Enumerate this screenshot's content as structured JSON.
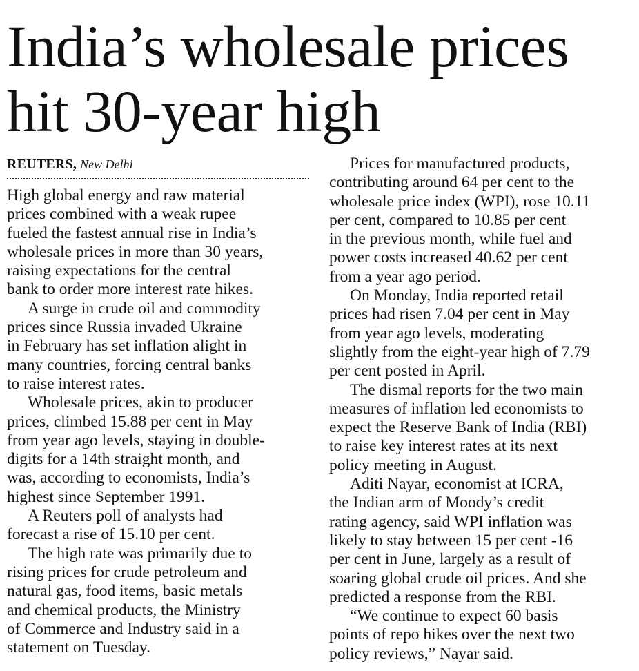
{
  "headline": {
    "line1": "India’s wholesale prices",
    "line2": "hit 30-year high"
  },
  "byline": {
    "agency": "REUTERS,",
    "place": "New Delhi"
  },
  "left_column": {
    "paragraphs": [
      {
        "lines": [
          "High global energy and raw material",
          "prices combined with a weak rupee",
          "fueled the fastest annual rise in India’s",
          "wholesale prices in more than 30 years,",
          "raising expectations for the central",
          "bank to order more interest rate hikes."
        ]
      },
      {
        "lines": [
          "A surge in crude oil and commodity",
          "prices since Russia invaded Ukraine",
          "in February has set inflation alight in",
          "many countries, forcing central banks",
          "to raise interest rates."
        ]
      },
      {
        "lines": [
          "Wholesale prices, akin to producer",
          "prices, climbed 15.88 per cent in May",
          "from year ago levels, staying in double-",
          "digits for a 14th straight month, and",
          "was, according to economists, India’s",
          "highest since September 1991."
        ]
      },
      {
        "lines": [
          "A Reuters poll of analysts had",
          "forecast a rise of 15.10 per cent."
        ]
      },
      {
        "lines": [
          "The high rate was primarily due to",
          "rising prices for crude petroleum and",
          "natural gas, food items, basic metals",
          "and chemical products, the Ministry",
          "of Commerce and Industry said in a",
          "statement on Tuesday."
        ]
      }
    ]
  },
  "right_column": {
    "paragraphs": [
      {
        "lines": [
          "Prices for manufactured products,",
          "contributing around 64 per cent to the",
          "wholesale price index (WPI), rose 10.11",
          "per cent, compared to 10.85 per cent",
          "in the previous month, while fuel and",
          "power costs increased 40.62 per cent",
          "from a year ago period."
        ]
      },
      {
        "lines": [
          "On Monday, India reported retail",
          "prices had risen 7.04 per cent in May",
          "from year ago levels, moderating",
          "slightly from the eight-year high of 7.79",
          "per cent posted in April."
        ]
      },
      {
        "lines": [
          "The dismal reports for the two main",
          "measures of inflation led economists to",
          "expect the Reserve Bank of India (RBI)",
          "to raise key interest rates at its next",
          "policy meeting in August."
        ]
      },
      {
        "lines": [
          "Aditi Nayar, economist at ICRA,",
          "the Indian arm of Moody’s credit",
          "rating agency, said WPI inflation was",
          "likely to stay between 15 per cent -16",
          "per cent in June, largely as a result of",
          "soaring global crude oil prices. And she",
          "predicted a response from the RBI."
        ]
      },
      {
        "lines": [
          "“We continue to expect 60 basis",
          "points of repo hikes over the next two",
          "policy reviews,” Nayar said."
        ]
      }
    ]
  }
}
